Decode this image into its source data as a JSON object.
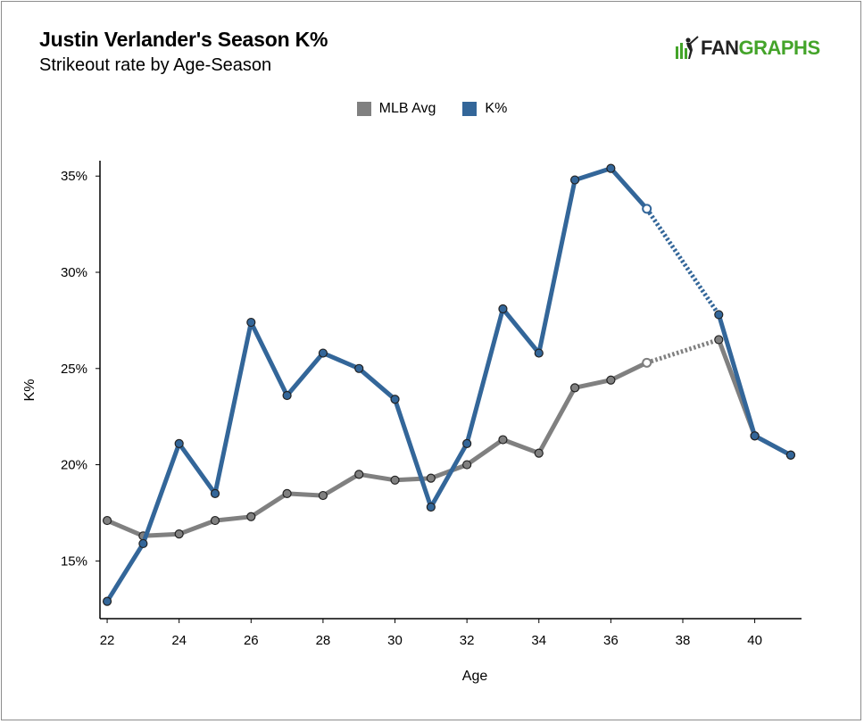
{
  "header": {
    "title": "Justin Verlander's Season K%",
    "subtitle": "Strikeout rate by Age-Season"
  },
  "logo": {
    "text_fan": "FAN",
    "text_graphs": "GRAPHS",
    "icon": "batter-icon"
  },
  "colors": {
    "mlb": "#808080",
    "k": "#336699",
    "logo_green": "#44a42a",
    "logo_dark": "#222222"
  },
  "chart_data": {
    "type": "line",
    "xlabel": "Age",
    "ylabel": "K%",
    "xlim": [
      21.8,
      41.3
    ],
    "ylim": [
      12,
      35.8
    ],
    "x_ticks": [
      22,
      24,
      26,
      28,
      30,
      32,
      34,
      36,
      38,
      40
    ],
    "y_ticks": [
      15,
      20,
      25,
      30,
      35
    ],
    "y_tick_labels": [
      "15%",
      "20%",
      "25%",
      "30%",
      "35%"
    ],
    "legend_position": "top-center",
    "grid": false,
    "series": [
      {
        "name": "MLB Avg",
        "color": "#808080",
        "segments": [
          {
            "style": "solid",
            "points": [
              [
                22,
                17.1
              ],
              [
                23,
                16.3
              ],
              [
                24,
                16.4
              ],
              [
                25,
                17.1
              ],
              [
                26,
                17.3
              ],
              [
                27,
                18.5
              ],
              [
                28,
                18.4
              ],
              [
                29,
                19.5
              ],
              [
                30,
                19.2
              ],
              [
                31,
                19.3
              ],
              [
                32,
                20.0
              ],
              [
                33,
                21.3
              ],
              [
                34,
                20.6
              ],
              [
                35,
                24.0
              ],
              [
                36,
                24.4
              ],
              [
                37,
                25.3
              ]
            ]
          },
          {
            "style": "dotted",
            "points": [
              [
                37,
                25.3
              ],
              [
                39,
                26.5
              ]
            ]
          },
          {
            "style": "solid",
            "points": [
              [
                39,
                26.5
              ],
              [
                40,
                21.5
              ],
              [
                41,
                20.5
              ]
            ]
          }
        ],
        "hollow_points": [
          [
            37,
            25.3
          ]
        ]
      },
      {
        "name": "K%",
        "color": "#336699",
        "segments": [
          {
            "style": "solid",
            "points": [
              [
                22,
                12.9
              ],
              [
                23,
                15.9
              ],
              [
                24,
                21.1
              ],
              [
                25,
                18.5
              ],
              [
                26,
                27.4
              ],
              [
                27,
                23.6
              ],
              [
                28,
                25.8
              ],
              [
                29,
                25.0
              ],
              [
                30,
                23.4
              ],
              [
                31,
                17.8
              ],
              [
                32,
                21.1
              ],
              [
                33,
                28.1
              ],
              [
                34,
                25.8
              ],
              [
                35,
                34.8
              ],
              [
                36,
                35.4
              ],
              [
                37,
                33.3
              ]
            ]
          },
          {
            "style": "dotted",
            "points": [
              [
                37,
                33.3
              ],
              [
                39,
                27.8
              ]
            ]
          },
          {
            "style": "solid",
            "points": [
              [
                39,
                27.8
              ],
              [
                40,
                21.5
              ],
              [
                41,
                20.5
              ]
            ]
          }
        ],
        "hollow_points": [
          [
            37,
            33.3
          ]
        ]
      }
    ]
  }
}
